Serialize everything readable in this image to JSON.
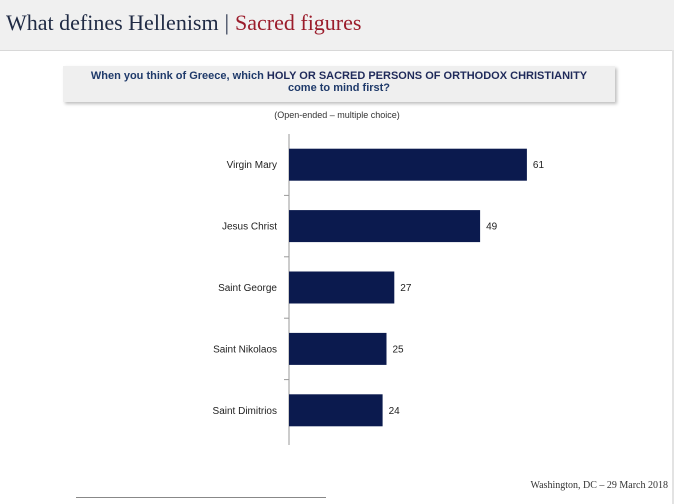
{
  "header": {
    "title": "What defines Hellenism",
    "separator": "|",
    "subtitle": "Sacred figures"
  },
  "question": {
    "prefix": "When you think of Greece, which ",
    "highlight": "HOLY OR SACRED PERSONS OF ORTHODOX CHRISTIANITY",
    "suffix": "come to mind first?"
  },
  "note": "(Open-ended – multiple choice)",
  "footer": "Washington, DC – 29 March 2018",
  "chart_data": {
    "type": "bar",
    "orientation": "horizontal",
    "categories": [
      "Virgin Mary",
      "Jesus Christ",
      "Saint George",
      "Saint Nikolaos",
      "Saint Dimitrios"
    ],
    "values": [
      61,
      49,
      27,
      25,
      24
    ],
    "xlim": [
      0,
      100
    ],
    "bar_color": "#0b1a4e",
    "grid": false,
    "legend": "none"
  }
}
